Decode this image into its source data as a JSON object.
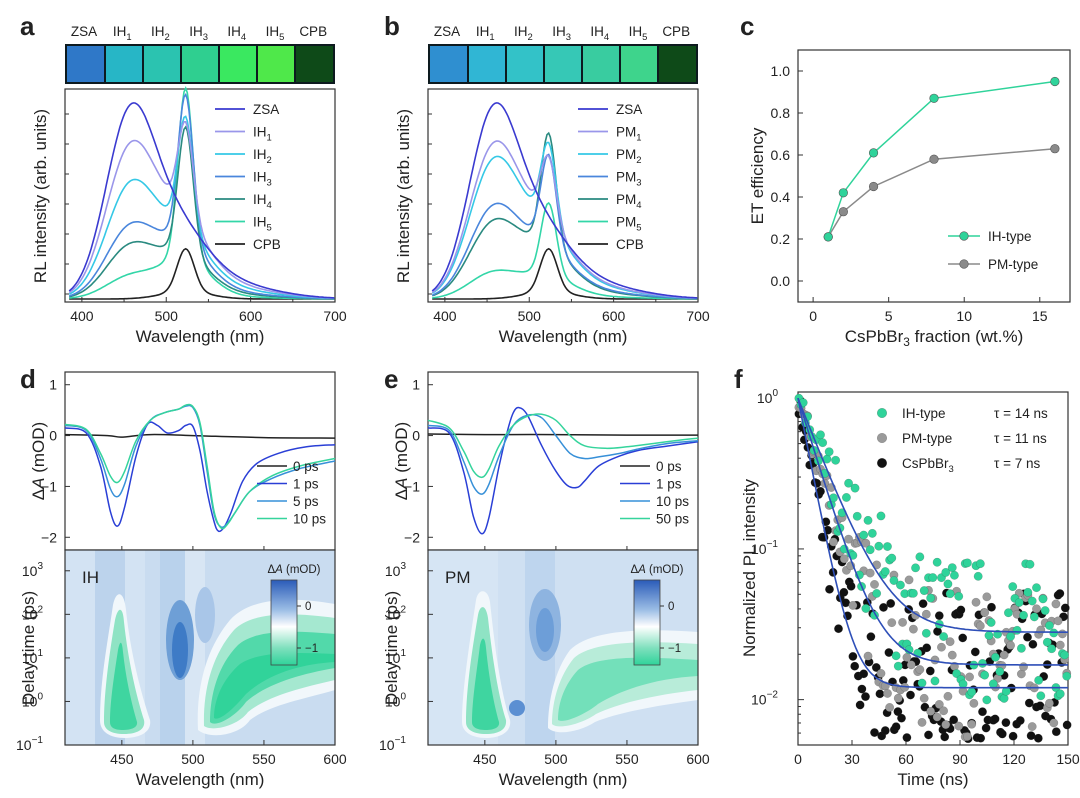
{
  "panels": {
    "a": {
      "letter": "a",
      "strip": {
        "labels": [
          {
            "t": "ZSA",
            "s": ""
          },
          {
            "t": "IH",
            "s": "1"
          },
          {
            "t": "IH",
            "s": "2"
          },
          {
            "t": "IH",
            "s": "3"
          },
          {
            "t": "IH",
            "s": "4"
          },
          {
            "t": "IH",
            "s": "5"
          },
          {
            "t": "CPB",
            "s": ""
          }
        ]
      },
      "xlabel": "Wavelength (nm)",
      "ylabel": "RL intensity (arb. units)"
    },
    "b": {
      "letter": "b",
      "strip": {
        "labels": [
          {
            "t": "ZSA",
            "s": ""
          },
          {
            "t": "IH",
            "s": "1"
          },
          {
            "t": "IH",
            "s": "2"
          },
          {
            "t": "IH",
            "s": "3"
          },
          {
            "t": "IH",
            "s": "4"
          },
          {
            "t": "IH",
            "s": "5"
          },
          {
            "t": "CPB",
            "s": ""
          }
        ]
      },
      "xlabel": "Wavelength (nm)",
      "ylabel": "RL intensity (arb. units)"
    },
    "c": {
      "letter": "c",
      "xlabel": "CsPbBr3 fraction (wt.%)",
      "xlabel_parts": [
        "CsPbBr",
        "3",
        " fraction (wt.%)"
      ],
      "ylabel": "ET efficiency"
    },
    "d": {
      "letter": "d",
      "ylabel": "ΔA (mOD)",
      "ylabel_parts": [
        "Δ",
        "A",
        " (mOD)"
      ],
      "map_label": "IH",
      "map_ylabel": "Delay time  (ps)",
      "xlabel": "Wavelength (nm)",
      "colorbar_label": "ΔA (mOD)",
      "colorbar_ticks": [
        "0",
        "−1"
      ]
    },
    "e": {
      "letter": "e",
      "ylabel": "ΔA (mOD)",
      "ylabel_parts": [
        "Δ",
        "A",
        " (mOD)"
      ],
      "map_label": "PM",
      "map_ylabel": "Delay time  (ps)",
      "xlabel": "Wavelength (nm)",
      "colorbar_label": "ΔA (mOD)",
      "colorbar_ticks": [
        "0",
        "−1"
      ]
    },
    "f": {
      "letter": "f",
      "xlabel": "Time (ns)",
      "ylabel": "Normalized PL intensity"
    }
  },
  "chart_data": [
    {
      "id": "a",
      "type": "line",
      "xlabel": "Wavelength (nm)",
      "ylabel": "RL intensity (arb. units)",
      "xlim": [
        380,
        700
      ],
      "xticks": [
        "400",
        "500",
        "600",
        "700"
      ],
      "series": [
        {
          "name": "ZSA",
          "name_parts": [
            "ZSA",
            ""
          ],
          "color": "#3a3ad0",
          "broad": 1.0,
          "peak": 0.0
        },
        {
          "name": "IH1",
          "name_parts": [
            "IH",
            "1"
          ],
          "color": "#9a96ea",
          "broad": 0.8,
          "peak": 0.55
        },
        {
          "name": "IH2",
          "name_parts": [
            "IH",
            "2"
          ],
          "color": "#35c8e6",
          "broad": 0.6,
          "peak": 0.66
        },
        {
          "name": "IH3",
          "name_parts": [
            "IH",
            "3"
          ],
          "color": "#4a86dc",
          "broad": 0.38,
          "peak": 0.86
        },
        {
          "name": "IH4",
          "name_parts": [
            "IH",
            "4"
          ],
          "color": "#2a8a80",
          "broad": 0.28,
          "peak": 0.74
        },
        {
          "name": "IH5",
          "name_parts": [
            "IH",
            "5"
          ],
          "color": "#33d6a8",
          "broad": 0.12,
          "peak": 1.0
        },
        {
          "name": "CPB",
          "name_parts": [
            "CPB",
            ""
          ],
          "color": "#222222",
          "broad": 0.0,
          "peak": 0.25
        }
      ]
    },
    {
      "id": "b",
      "type": "line",
      "xlabel": "Wavelength (nm)",
      "ylabel": "RL intensity (arb. units)",
      "xlim": [
        380,
        700
      ],
      "xticks": [
        "400",
        "500",
        "600",
        "700"
      ],
      "series": [
        {
          "name": "ZSA",
          "name_parts": [
            "ZSA",
            ""
          ],
          "color": "#3a3ad0",
          "broad": 1.0,
          "peak": 0.0
        },
        {
          "name": "PM1",
          "name_parts": [
            "PM",
            "1"
          ],
          "color": "#9a96ea",
          "broad": 0.8,
          "peak": 0.38
        },
        {
          "name": "PM2",
          "name_parts": [
            "PM",
            "2"
          ],
          "color": "#35c8e6",
          "broad": 0.72,
          "peak": 0.48
        },
        {
          "name": "PM3",
          "name_parts": [
            "PM",
            "3"
          ],
          "color": "#4a86dc",
          "broad": 0.48,
          "peak": 0.52
        },
        {
          "name": "PM4",
          "name_parts": [
            "PM",
            "4"
          ],
          "color": "#2a8a80",
          "broad": 0.4,
          "peak": 0.66
        },
        {
          "name": "PM5",
          "name_parts": [
            "PM",
            "5"
          ],
          "color": "#33d6a8",
          "broad": 0.14,
          "peak": 0.42
        },
        {
          "name": "CPB",
          "name_parts": [
            "CPB",
            ""
          ],
          "color": "#222222",
          "broad": 0.0,
          "peak": 0.25
        }
      ]
    },
    {
      "id": "c",
      "type": "line",
      "xlabel": "CsPbBr3 fraction (wt.%)",
      "ylabel": "ET efficiency",
      "xlim": [
        -1,
        17
      ],
      "ylim": [
        -0.1,
        1.1
      ],
      "xticks": [
        0,
        5,
        10,
        15
      ],
      "yticks": [
        0.0,
        0.2,
        0.4,
        0.6,
        0.8,
        1.0
      ],
      "series": [
        {
          "name": "IH-type",
          "color": "#2fd39a",
          "x": [
            1,
            2,
            4,
            8,
            16
          ],
          "y": [
            0.21,
            0.42,
            0.61,
            0.87,
            0.95
          ]
        },
        {
          "name": "PM-type",
          "color": "#8a8a8a",
          "x": [
            1,
            2,
            4,
            8,
            16
          ],
          "y": [
            0.21,
            0.33,
            0.45,
            0.58,
            0.63
          ]
        }
      ]
    },
    {
      "id": "d",
      "type": "line",
      "xlabel": "Wavelength (nm)",
      "ylabel": "ΔA (mOD)",
      "xlim": [
        410,
        600
      ],
      "ylim": [
        -2.25,
        1.25
      ],
      "yticks": [
        1,
        0,
        -1,
        -2
      ],
      "xticks": [
        450,
        500,
        550,
        600
      ],
      "series": [
        {
          "name": "0 ps",
          "color": "#222222",
          "x": [
            410,
            440,
            450,
            470,
            500,
            550,
            600
          ],
          "y": [
            0.02,
            0.0,
            -0.03,
            0.02,
            0.0,
            -0.04,
            -0.05
          ]
        },
        {
          "name": "1 ps",
          "color": "#2a3fd6",
          "x": [
            410,
            425,
            435,
            442,
            447,
            452,
            460,
            468,
            475,
            482,
            490,
            495,
            500,
            505,
            510,
            515,
            518,
            522,
            527,
            535,
            545,
            560,
            580,
            600
          ],
          "y": [
            0.15,
            0.05,
            -0.6,
            -1.5,
            -1.78,
            -1.4,
            -0.4,
            0.22,
            0.2,
            0.05,
            0.1,
            0.2,
            0.18,
            -0.3,
            -1.1,
            -1.7,
            -1.88,
            -1.8,
            -1.5,
            -0.9,
            -0.55,
            -0.35,
            -0.22,
            -0.18
          ]
        },
        {
          "name": "5 ps",
          "color": "#3790d8",
          "x": [
            410,
            425,
            435,
            442,
            447,
            452,
            460,
            470,
            480,
            490,
            495,
            500,
            505,
            510,
            515,
            520,
            525,
            530,
            540,
            555,
            575,
            600
          ],
          "y": [
            0.2,
            0.1,
            -0.45,
            -1.05,
            -1.2,
            -0.95,
            -0.2,
            0.3,
            0.45,
            0.52,
            0.58,
            0.55,
            0.2,
            -0.7,
            -1.55,
            -1.8,
            -1.7,
            -1.5,
            -1.1,
            -0.85,
            -0.65,
            -0.5
          ]
        },
        {
          "name": "10 ps",
          "color": "#35d49c",
          "x": [
            410,
            425,
            435,
            442,
            447,
            452,
            460,
            470,
            480,
            490,
            495,
            500,
            505,
            510,
            515,
            520,
            525,
            530,
            540,
            555,
            575,
            600
          ],
          "y": [
            0.22,
            0.12,
            -0.35,
            -0.8,
            -0.92,
            -0.7,
            -0.1,
            0.3,
            0.45,
            0.52,
            0.6,
            0.57,
            0.25,
            -0.6,
            -1.5,
            -1.82,
            -1.72,
            -1.5,
            -1.1,
            -0.8,
            -0.6,
            -0.45
          ]
        }
      ]
    },
    {
      "id": "e",
      "type": "line",
      "xlabel": "Wavelength (nm)",
      "ylabel": "ΔA (mOD)",
      "xlim": [
        410,
        600
      ],
      "ylim": [
        -2.25,
        1.25
      ],
      "yticks": [
        1,
        0,
        -1,
        -2
      ],
      "xticks": [
        450,
        500,
        550,
        600
      ],
      "series": [
        {
          "name": "0 ps",
          "color": "#222222",
          "x": [
            410,
            450,
            500,
            550,
            600
          ],
          "y": [
            0.03,
            0.02,
            0.02,
            0.01,
            0.01
          ]
        },
        {
          "name": "1 ps",
          "color": "#2a3fd6",
          "x": [
            410,
            425,
            435,
            442,
            448,
            453,
            460,
            466,
            470,
            474,
            480,
            490,
            500,
            508,
            515,
            520,
            530,
            545,
            560,
            580,
            600
          ],
          "y": [
            0.15,
            0.05,
            -0.7,
            -1.6,
            -1.93,
            -1.6,
            -0.6,
            0.1,
            0.45,
            0.55,
            0.4,
            -0.2,
            -0.7,
            -0.98,
            -1.02,
            -0.9,
            -0.6,
            -0.4,
            -0.28,
            -0.2,
            -0.12
          ]
        },
        {
          "name": "10 ps",
          "color": "#3790d8",
          "x": [
            410,
            425,
            435,
            442,
            448,
            453,
            460,
            470,
            480,
            490,
            500,
            510,
            520,
            530,
            545,
            560,
            580,
            600
          ],
          "y": [
            0.2,
            0.1,
            -0.5,
            -1.0,
            -1.15,
            -0.95,
            -0.4,
            0.2,
            0.4,
            0.35,
            0.0,
            -0.35,
            -0.45,
            -0.42,
            -0.35,
            -0.25,
            -0.15,
            -0.1
          ]
        },
        {
          "name": "50 ps",
          "color": "#35d49c",
          "x": [
            410,
            425,
            435,
            442,
            448,
            453,
            460,
            470,
            480,
            490,
            500,
            510,
            520,
            535,
            550,
            570,
            590,
            600
          ],
          "y": [
            0.3,
            0.15,
            -0.3,
            -0.7,
            -0.82,
            -0.65,
            -0.2,
            0.2,
            0.38,
            0.42,
            0.3,
            0.0,
            -0.2,
            -0.25,
            -0.22,
            -0.15,
            -0.08,
            -0.05
          ]
        }
      ]
    },
    {
      "id": "d_map",
      "type": "heatmap",
      "xlabel": "Wavelength (nm)",
      "ylabel": "Delay time  (ps)",
      "xlim": [
        410,
        600
      ],
      "ylim": [
        0.1,
        3000
      ],
      "yscale": "log",
      "xticks": [
        450,
        500,
        550,
        600
      ],
      "yticks": [
        "10",
        "10",
        "10",
        "10",
        "10"
      ],
      "yticks_exp": [
        "−1",
        "0",
        "1",
        "2",
        "3"
      ],
      "colorbar_range": [
        -1.5,
        0.5
      ]
    },
    {
      "id": "e_map",
      "type": "heatmap",
      "xlabel": "Wavelength (nm)",
      "ylabel": "Delay time  (ps)",
      "xlim": [
        410,
        600
      ],
      "ylim": [
        0.1,
        3000
      ],
      "yscale": "log",
      "xticks": [
        450,
        500,
        550,
        600
      ],
      "yticks": [
        "10",
        "10",
        "10",
        "10",
        "10"
      ],
      "yticks_exp": [
        "−1",
        "0",
        "1",
        "2",
        "3"
      ],
      "colorbar_range": [
        -1.5,
        0.5
      ]
    },
    {
      "id": "f",
      "type": "scatter",
      "xlabel": "Time (ns)",
      "ylabel": "Normalized PL intensity",
      "xlim": [
        0,
        150
      ],
      "ylim": [
        0.005,
        1.1
      ],
      "yscale": "log",
      "xticks": [
        0,
        30,
        60,
        90,
        120,
        150
      ],
      "series": [
        {
          "name": "IH-type",
          "tau": "τ = 14 ns",
          "color": "#2fd39a",
          "tau_ns": 14,
          "floor": 0.028
        },
        {
          "name": "PM-type",
          "tau": "τ = 11 ns",
          "color": "#9a9a9a",
          "tau_ns": 11,
          "floor": 0.017
        },
        {
          "name": "CsPbBr3",
          "name_parts": [
            "CsPbBr",
            "3"
          ],
          "tau": "τ = 7 ns",
          "color": "#111111",
          "tau_ns": 7,
          "floor": 0.012
        }
      ]
    }
  ]
}
